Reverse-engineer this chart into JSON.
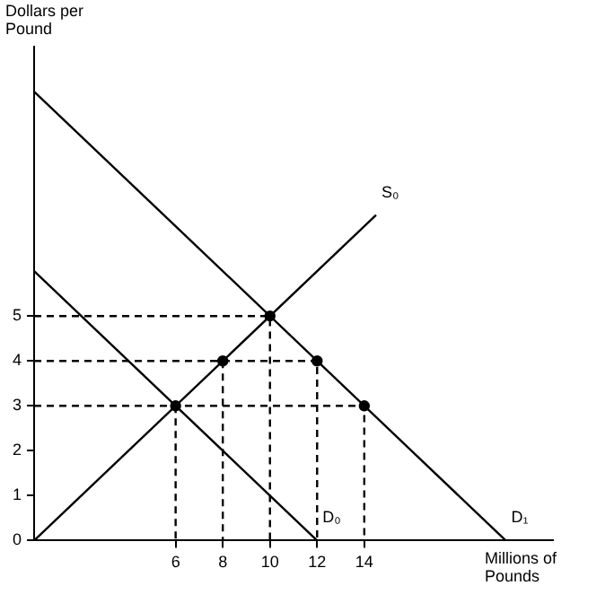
{
  "chart_data": {
    "type": "line",
    "xlabel": "Millions of Pounds",
    "ylabel": "Dollars per Pound",
    "xlim": [
      0,
      22
    ],
    "ylim": [
      0,
      11
    ],
    "xticks": [
      6,
      8,
      10,
      12,
      14
    ],
    "yticks": [
      0,
      1,
      2,
      3,
      4,
      5
    ],
    "grid": false,
    "legend": false,
    "series": [
      {
        "color": "#000000",
        "x": [
          0,
          14.5
        ],
        "values": [
          0,
          7.25
        ],
        "marker": "none",
        "line_style": "solid"
      },
      {
        "color": "#000000",
        "x": [
          0,
          12
        ],
        "values": [
          6,
          0
        ],
        "marker": "none",
        "line_style": "solid"
      },
      {
        "color": "#000000",
        "x": [
          0,
          20
        ],
        "values": [
          10,
          0
        ],
        "marker": "none",
        "line_style": "solid"
      },
      {
        "color": "#000000",
        "x": [
          0,
          10,
          10
        ],
        "values": [
          5,
          5,
          0
        ],
        "marker": "none",
        "line_style": "dashed"
      },
      {
        "color": "#000000",
        "x": [
          0,
          12,
          12
        ],
        "values": [
          4,
          4,
          0
        ],
        "marker": "none",
        "line_style": "dashed"
      },
      {
        "color": "#000000",
        "x": [
          0,
          14,
          14
        ],
        "values": [
          3,
          3,
          0
        ],
        "marker": "none",
        "line_style": "dashed"
      },
      {
        "color": "#000000",
        "x": [
          6,
          6
        ],
        "values": [
          3,
          0
        ],
        "marker": "none",
        "line_style": "dashed"
      },
      {
        "color": "#000000",
        "x": [
          8,
          8
        ],
        "values": [
          4,
          0
        ],
        "marker": "none",
        "line_style": "dashed"
      },
      {
        "type": "scatter",
        "color": "#000000",
        "x": [
          6,
          8,
          10,
          12,
          14
        ],
        "values": [
          3,
          4,
          5,
          4,
          3
        ],
        "marker": "circle"
      }
    ],
    "annotations": [
      {
        "text": "S₀",
        "x": 14.5,
        "y": 7.25
      },
      {
        "text": "D₀",
        "x": 12,
        "y": 0
      },
      {
        "text": "D₁",
        "x": 20,
        "y": 0
      }
    ]
  }
}
